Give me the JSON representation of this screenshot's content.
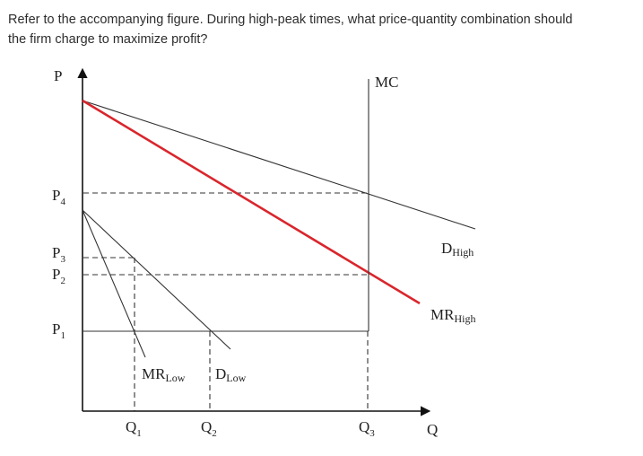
{
  "question": {
    "line1": "Refer to the accompanying figure. During high-peak times, what price-quantity combination should",
    "line2": "the firm charge to maximize profit?"
  },
  "figure": {
    "axis_price": "P",
    "axis_quantity": "Q",
    "price_labels": {
      "p4_main": "P",
      "p4_sub": "4",
      "p3_main": "P",
      "p3_sub": "3",
      "p2_main": "P",
      "p2_sub": "2",
      "p1_main": "P",
      "p1_sub": "1"
    },
    "quantity_labels": {
      "q1_main": "Q",
      "q1_sub": "1",
      "q2_main": "Q",
      "q2_sub": "2",
      "q3_main": "Q",
      "q3_sub": "3"
    },
    "curve_labels": {
      "mc": "MC",
      "d_high_main": "D",
      "d_high_sub": "High",
      "mr_high_main": "MR",
      "mr_high_sub": "High",
      "mr_low_main": "MR",
      "mr_low_sub": "Low",
      "d_low_main": "D",
      "d_low_sub": "Low"
    },
    "colors": {
      "mr_high_line": "#d9262c",
      "lines": "#333333",
      "background": "#ffffff"
    }
  }
}
